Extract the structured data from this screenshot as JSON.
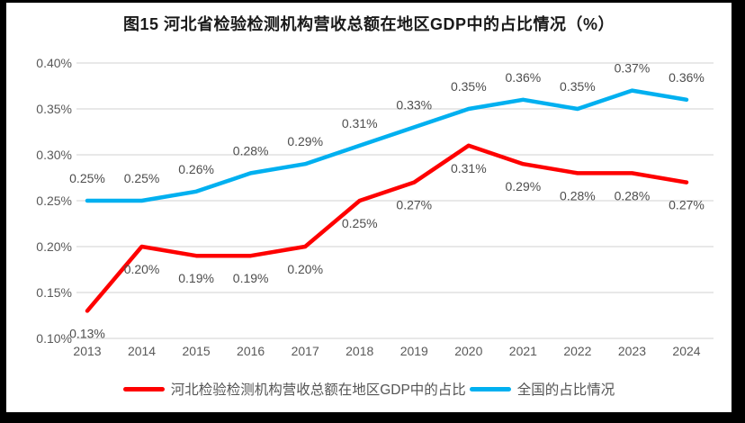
{
  "frame": {
    "border_color": "#000000",
    "background": "#ffffff"
  },
  "chart_data": {
    "type": "line",
    "title": "图15 河北省检验检测机构营收总额在地区GDP中的占比情况（%）",
    "categories": [
      "2013",
      "2014",
      "2015",
      "2016",
      "2017",
      "2018",
      "2019",
      "2020",
      "2021",
      "2022",
      "2023",
      "2024"
    ],
    "series": [
      {
        "name": "河北检验检测机构营收总额在地区GDP中的占比",
        "color": "#fe0000",
        "values": [
          0.13,
          0.2,
          0.19,
          0.19,
          0.2,
          0.25,
          0.27,
          0.31,
          0.29,
          0.28,
          0.28,
          0.27
        ],
        "labels": [
          "0.13%",
          "0.20%",
          "0.19%",
          "0.19%",
          "0.20%",
          "0.25%",
          "0.27%",
          "0.31%",
          "0.29%",
          "0.28%",
          "0.28%",
          "0.27%"
        ],
        "label_position": "below"
      },
      {
        "name": "全国的占比情况",
        "color": "#00b0f0",
        "values": [
          0.25,
          0.25,
          0.26,
          0.28,
          0.29,
          0.31,
          0.33,
          0.35,
          0.36,
          0.35,
          0.37,
          0.36
        ],
        "labels": [
          "0.25%",
          "0.25%",
          "0.26%",
          "0.28%",
          "0.29%",
          "0.31%",
          "0.33%",
          "0.35%",
          "0.36%",
          "0.35%",
          "0.37%",
          "0.36%"
        ],
        "label_position": "above"
      }
    ],
    "xlabel": "",
    "ylabel": "",
    "ylim": [
      0.1,
      0.4
    ],
    "yticks": [
      {
        "value": 0.1,
        "label": "0.10%"
      },
      {
        "value": 0.15,
        "label": "0.15%"
      },
      {
        "value": 0.2,
        "label": "0.20%"
      },
      {
        "value": 0.25,
        "label": "0.25%"
      },
      {
        "value": 0.3,
        "label": "0.30%"
      },
      {
        "value": 0.35,
        "label": "0.35%"
      },
      {
        "value": 0.4,
        "label": "0.40%"
      }
    ],
    "grid": true,
    "legend_position": "bottom",
    "grid_color": "#d9d9d9",
    "axis_text_color": "#595959",
    "data_label_color": "#4d4d4d"
  }
}
